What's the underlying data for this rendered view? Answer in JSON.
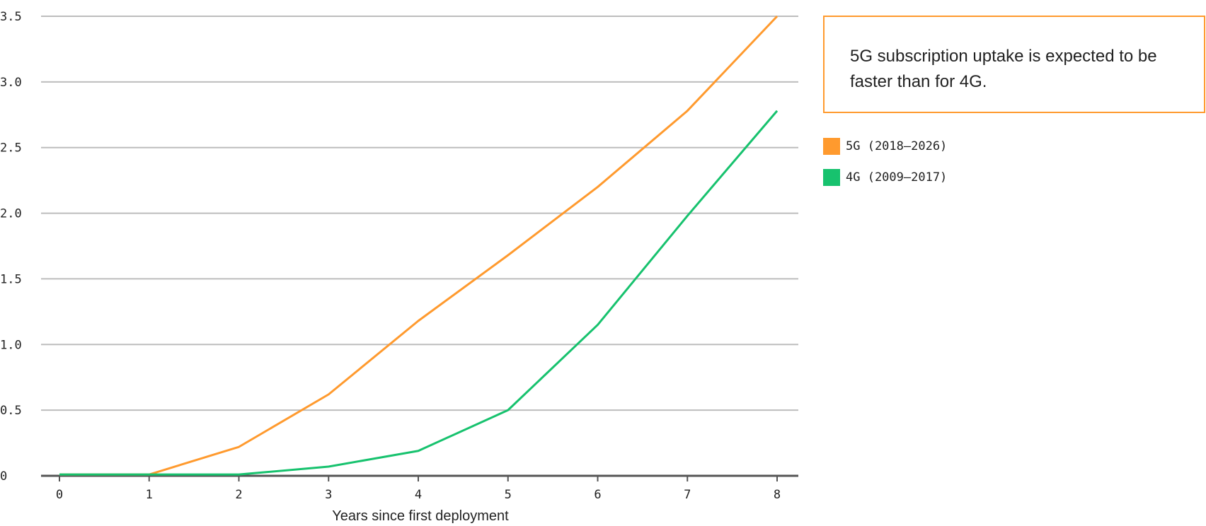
{
  "chart_data": {
    "type": "line",
    "title": "",
    "xlabel": "Years since first deployment",
    "ylabel": "",
    "x": [
      0,
      1,
      2,
      3,
      4,
      5,
      6,
      7,
      8
    ],
    "x_tick_labels": [
      "0",
      "1",
      "2",
      "3",
      "4",
      "5",
      "6",
      "7",
      "8"
    ],
    "y_tick_labels": [
      "0",
      "0.5",
      "1.0",
      "1.5",
      "2.0",
      "2.5",
      "3.0",
      "3.5"
    ],
    "y_ticks": [
      0,
      0.5,
      1.0,
      1.5,
      2.0,
      2.5,
      3.0,
      3.5
    ],
    "xlim": [
      0,
      8
    ],
    "ylim": [
      0,
      3.5
    ],
    "grid": "horizontal",
    "legend_position": "right",
    "series": [
      {
        "name": "5G (2018–2026)",
        "color": "#ff9a2e",
        "values": [
          0.01,
          0.01,
          0.22,
          0.62,
          1.18,
          1.68,
          2.2,
          2.78,
          3.5
        ]
      },
      {
        "name": "4G (2009–2017)",
        "color": "#17c26e",
        "values": [
          0.01,
          0.01,
          0.01,
          0.07,
          0.19,
          0.5,
          1.15,
          1.98,
          2.78
        ]
      }
    ],
    "annotation": "5G subscription uptake is expected to be faster than for 4G."
  },
  "colors": {
    "grid": "#bdbdbd",
    "axis": "#555555",
    "callout_border": "#ff9a2e"
  }
}
